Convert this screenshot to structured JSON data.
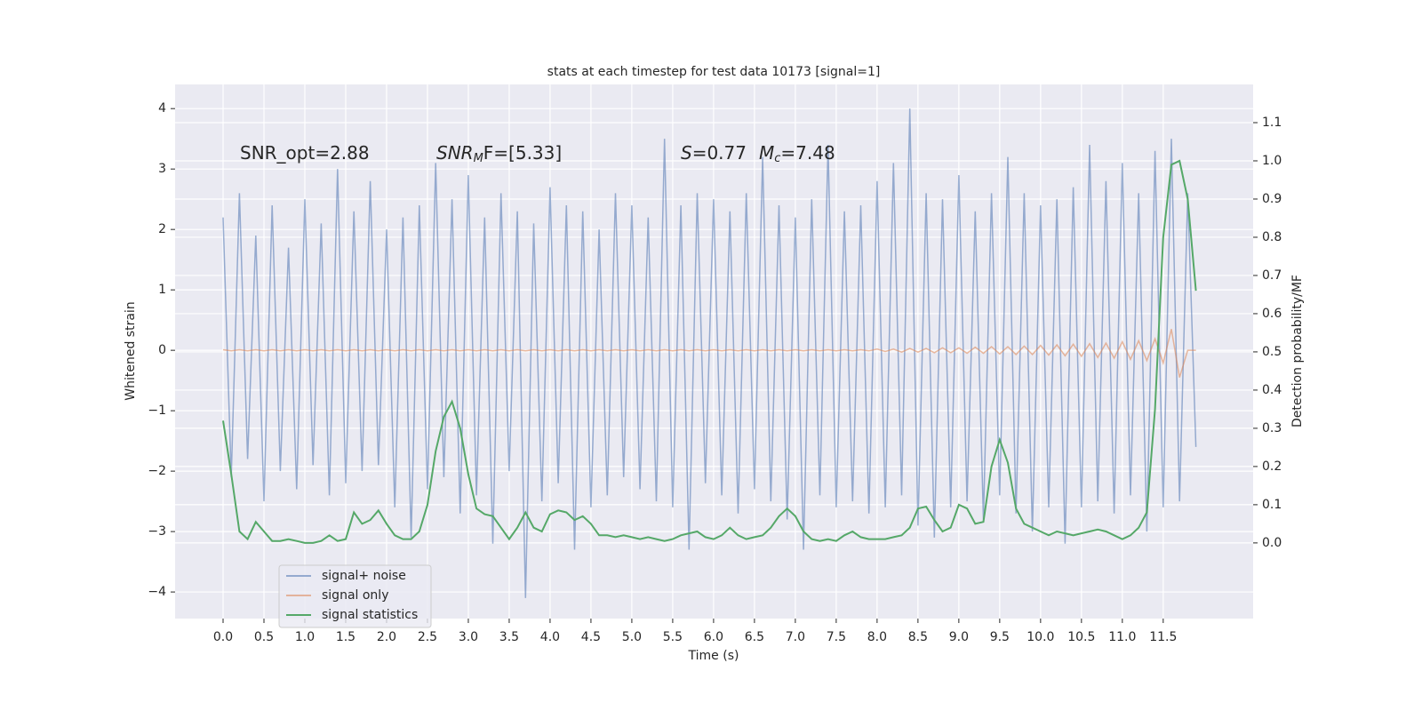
{
  "chart_data": {
    "type": "line",
    "title": "stats at each timestep for test data 10173 [signal=1]",
    "xlabel": "Time (s)",
    "ylabel": "Whitened strain",
    "y2label": "Detection probability/MF",
    "annotations": [
      [
        "SNR_opt=2.88"
      ],
      [
        "SNR",
        "M",
        "F=[5.33]"
      ],
      [
        "S",
        "=0.77",
        "M",
        "c",
        "=7.48"
      ]
    ],
    "xlim": [
      -0.587,
      12.6
    ],
    "ylim": [
      -4.44,
      4.4
    ],
    "y2lim": [
      -0.198,
      1.2
    ],
    "xticks": [
      {
        "value": 0,
        "label": "0.0"
      },
      0.5,
      {
        "value": 1,
        "label": "1.0"
      },
      1.5,
      {
        "value": 2,
        "label": "2.0"
      },
      2.5,
      {
        "value": 3,
        "label": "3.0"
      },
      3.5,
      {
        "value": 4,
        "label": "4.0"
      },
      4.5,
      {
        "value": 5,
        "label": "5.0"
      },
      5.5,
      {
        "value": 6,
        "label": "6.0"
      },
      6.5,
      {
        "value": 7,
        "label": "7.0"
      },
      7.5,
      {
        "value": 8,
        "label": "8.0"
      },
      8.5,
      {
        "value": 9,
        "label": "9.0"
      },
      9.5,
      {
        "value": 10,
        "label": "10.0"
      },
      10.5,
      {
        "value": 11,
        "label": "11.0"
      },
      11.5
    ],
    "yticks": [
      {
        "value": -4,
        "label": "−4"
      },
      {
        "value": -3,
        "label": "−3"
      },
      {
        "value": -2,
        "label": "−2"
      },
      {
        "value": -1,
        "label": "−1"
      },
      0,
      1,
      2,
      3,
      4
    ],
    "y2ticks": [
      {
        "value": 0,
        "label": "0.0"
      },
      0.1,
      0.2,
      0.3,
      0.4,
      0.5,
      0.6,
      0.7,
      0.8,
      0.9,
      {
        "value": 1,
        "label": "1.0"
      },
      1.1
    ],
    "grid": true,
    "legend": "lower left",
    "x": [
      0.0,
      0.1,
      0.2,
      0.3,
      0.4,
      0.5,
      0.6,
      0.7,
      0.8,
      0.9,
      1.0,
      1.1,
      1.2,
      1.3,
      1.4,
      1.5,
      1.6,
      1.7,
      1.8,
      1.9,
      2.0,
      2.1,
      2.2,
      2.3,
      2.4,
      2.5,
      2.6,
      2.7,
      2.8,
      2.9,
      3.0,
      3.1,
      3.2,
      3.3,
      3.4,
      3.5,
      3.6,
      3.7,
      3.8,
      3.9,
      4.0,
      4.1,
      4.2,
      4.3,
      4.4,
      4.5,
      4.6,
      4.7,
      4.8,
      4.9,
      5.0,
      5.1,
      5.2,
      5.3,
      5.4,
      5.5,
      5.6,
      5.7,
      5.8,
      5.9,
      6.0,
      6.1,
      6.2,
      6.3,
      6.4,
      6.5,
      6.6,
      6.7,
      6.8,
      6.9,
      7.0,
      7.1,
      7.2,
      7.3,
      7.4,
      7.5,
      7.6,
      7.7,
      7.8,
      7.9,
      8.0,
      8.1,
      8.2,
      8.3,
      8.4,
      8.5,
      8.6,
      8.7,
      8.8,
      8.9,
      9.0,
      9.1,
      9.2,
      9.3,
      9.4,
      9.5,
      9.6,
      9.7,
      9.8,
      9.9,
      10.0,
      10.1,
      10.2,
      10.3,
      10.4,
      10.5,
      10.6,
      10.7,
      10.8,
      10.9,
      11.0,
      11.1,
      11.2,
      11.3,
      11.4,
      11.5,
      11.6,
      11.7,
      11.8,
      11.9
    ],
    "series": [
      {
        "name": "signal+ noise",
        "color": "#4c72b0",
        "values": [
          2.2,
          -2.1,
          2.6,
          -1.8,
          1.9,
          -2.5,
          2.4,
          -2.0,
          1.7,
          -2.3,
          2.5,
          -1.9,
          2.1,
          -2.4,
          3.0,
          -2.2,
          2.3,
          -2.0,
          2.8,
          -1.9,
          2.0,
          -2.6,
          2.2,
          -3.1,
          2.4,
          -2.3,
          3.1,
          -2.1,
          2.5,
          -2.7,
          2.9,
          -2.4,
          2.2,
          -3.2,
          2.6,
          -2.0,
          2.3,
          -4.1,
          2.1,
          -2.5,
          2.7,
          -2.2,
          2.4,
          -3.3,
          2.3,
          -2.6,
          2.0,
          -2.4,
          2.6,
          -2.1,
          2.4,
          -2.3,
          2.2,
          -2.5,
          3.5,
          -2.6,
          2.4,
          -3.3,
          2.6,
          -2.2,
          2.5,
          -2.4,
          2.3,
          -2.7,
          2.6,
          -2.3,
          3.2,
          -2.5,
          2.4,
          -2.8,
          2.2,
          -3.3,
          2.5,
          -2.4,
          3.4,
          -2.6,
          2.3,
          -2.5,
          2.4,
          -2.7,
          2.8,
          -2.6,
          3.1,
          -2.4,
          4.0,
          -2.9,
          2.6,
          -3.1,
          2.5,
          -2.6,
          2.9,
          -2.5,
          2.3,
          -2.8,
          2.6,
          -2.4,
          3.2,
          -2.7,
          2.6,
          -3.0,
          2.4,
          -2.6,
          2.5,
          -3.2,
          2.7,
          -2.6,
          3.4,
          -2.5,
          2.8,
          -2.7,
          3.1,
          -2.4,
          2.6,
          -3.0,
          3.3,
          -2.6,
          3.5,
          -2.5,
          2.6,
          -1.6
        ]
      },
      {
        "name": "signal only",
        "color": "#dd8452",
        "values": [
          0.01,
          -0.01,
          0.01,
          -0.01,
          0.01,
          -0.01,
          0.01,
          -0.01,
          0.01,
          -0.01,
          0.01,
          -0.01,
          0.01,
          -0.01,
          0.01,
          -0.01,
          0.01,
          -0.01,
          0.01,
          -0.01,
          0.01,
          -0.01,
          0.01,
          -0.01,
          0.01,
          -0.01,
          0.01,
          -0.01,
          0.01,
          -0.01,
          0.01,
          -0.01,
          0.01,
          -0.01,
          0.01,
          -0.01,
          0.01,
          -0.01,
          0.01,
          -0.01,
          0.01,
          -0.01,
          0.01,
          -0.01,
          0.01,
          -0.01,
          0.01,
          -0.01,
          0.01,
          -0.01,
          0.01,
          -0.01,
          0.01,
          -0.01,
          0.01,
          -0.01,
          0.01,
          -0.01,
          0.01,
          -0.01,
          0.01,
          -0.01,
          0.01,
          -0.01,
          0.01,
          -0.01,
          0.01,
          -0.01,
          0.01,
          -0.01,
          0.01,
          -0.01,
          0.01,
          -0.01,
          0.01,
          -0.01,
          0.01,
          -0.01,
          0.01,
          -0.01,
          0.02,
          -0.02,
          0.02,
          -0.03,
          0.03,
          -0.03,
          0.03,
          -0.04,
          0.04,
          -0.04,
          0.04,
          -0.05,
          0.05,
          -0.05,
          0.06,
          -0.06,
          0.06,
          -0.07,
          0.07,
          -0.07,
          0.08,
          -0.08,
          0.09,
          -0.09,
          0.1,
          -0.1,
          0.11,
          -0.12,
          0.12,
          -0.13,
          0.14,
          -0.15,
          0.16,
          -0.17,
          0.19,
          -0.21,
          0.35,
          -0.45,
          0.0,
          0.0
        ]
      },
      {
        "name": "signal statistics",
        "color": "#55a868",
        "axis": "y2",
        "values": [
          0.32,
          0.18,
          0.03,
          0.01,
          0.055,
          0.03,
          0.005,
          0.005,
          0.01,
          0.005,
          0.0,
          0.0,
          0.005,
          0.02,
          0.005,
          0.01,
          0.08,
          0.05,
          0.06,
          0.085,
          0.05,
          0.02,
          0.01,
          0.01,
          0.03,
          0.1,
          0.24,
          0.33,
          0.37,
          0.3,
          0.18,
          0.09,
          0.075,
          0.07,
          0.04,
          0.01,
          0.04,
          0.08,
          0.04,
          0.03,
          0.075,
          0.085,
          0.08,
          0.06,
          0.07,
          0.05,
          0.02,
          0.02,
          0.015,
          0.02,
          0.015,
          0.01,
          0.015,
          0.01,
          0.005,
          0.01,
          0.02,
          0.025,
          0.03,
          0.015,
          0.01,
          0.02,
          0.04,
          0.02,
          0.01,
          0.015,
          0.02,
          0.04,
          0.07,
          0.09,
          0.07,
          0.03,
          0.01,
          0.005,
          0.01,
          0.005,
          0.02,
          0.03,
          0.015,
          0.01,
          0.01,
          0.01,
          0.015,
          0.02,
          0.04,
          0.09,
          0.095,
          0.06,
          0.03,
          0.04,
          0.1,
          0.09,
          0.05,
          0.055,
          0.2,
          0.27,
          0.21,
          0.09,
          0.05,
          0.04,
          0.03,
          0.02,
          0.03,
          0.025,
          0.02,
          0.025,
          0.03,
          0.035,
          0.03,
          0.02,
          0.01,
          0.02,
          0.04,
          0.08,
          0.35,
          0.8,
          0.99,
          1.0,
          0.9,
          0.66
        ]
      }
    ]
  }
}
